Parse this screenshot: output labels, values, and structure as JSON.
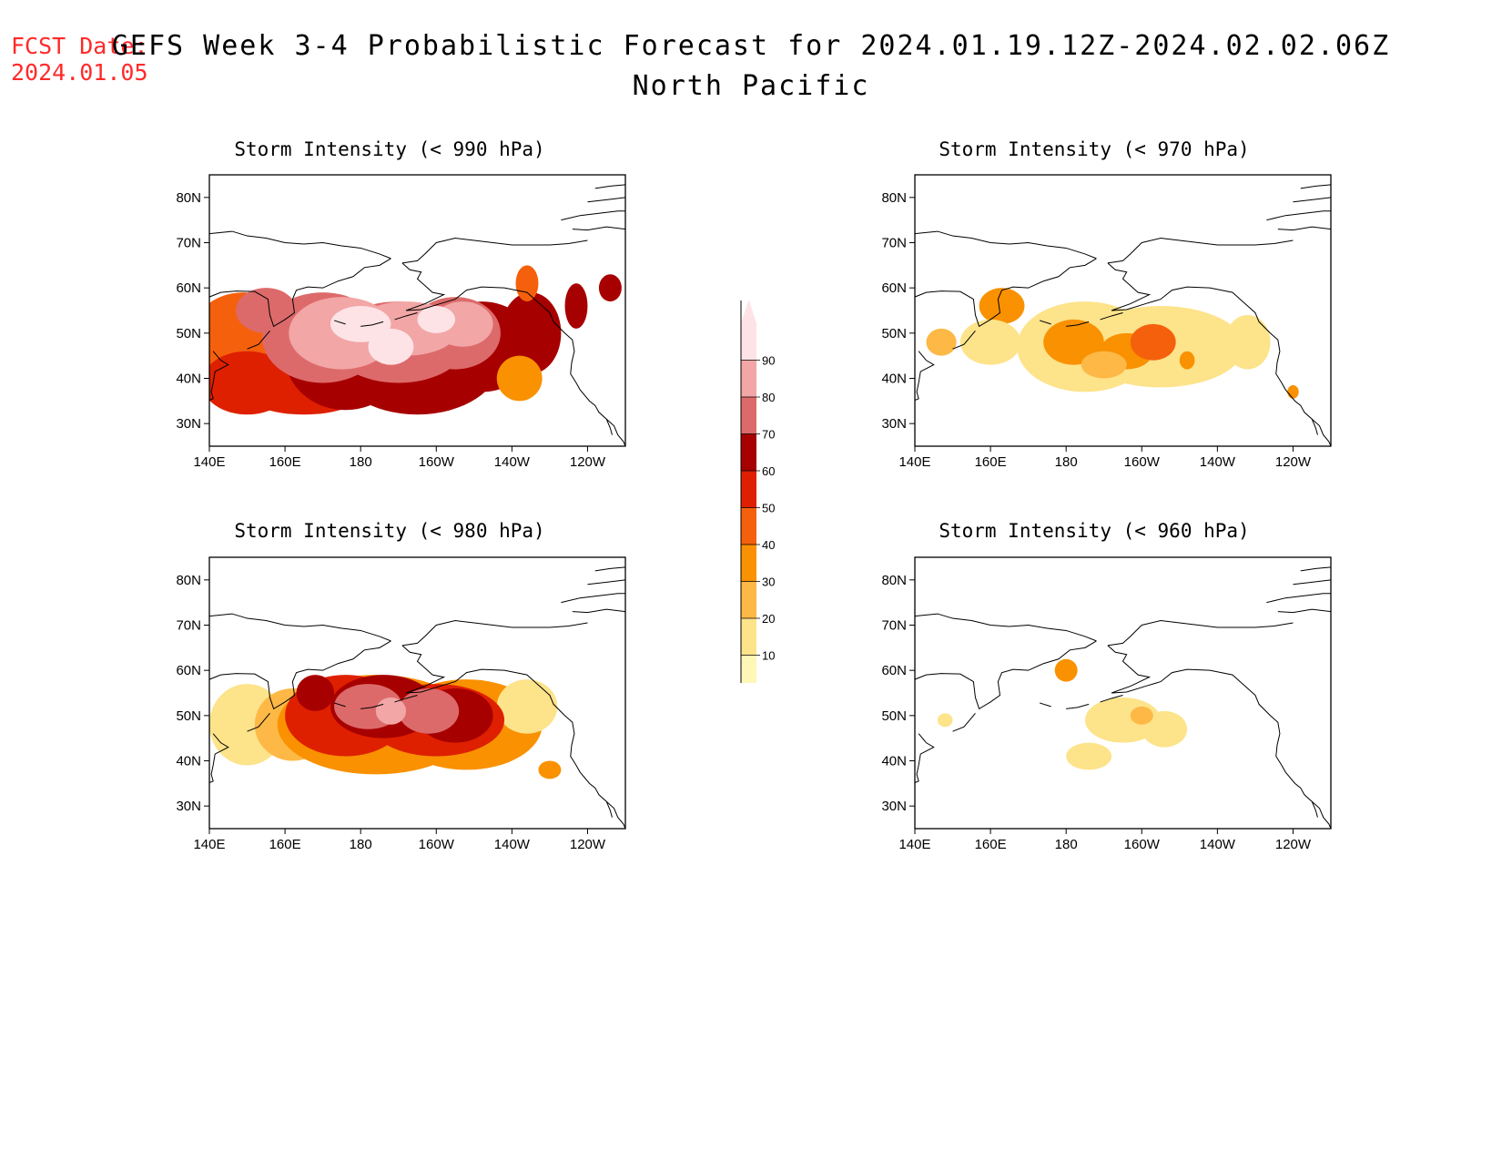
{
  "fcst_date": {
    "label": "FCST Date:",
    "value": "2024.01.05"
  },
  "title": {
    "line1": "GEFS Week 3-4 Probabilistic Forecast for 2024.01.19.12Z-2024.02.02.06Z",
    "line2": "North Pacific"
  },
  "axes": {
    "lat_labels": [
      "80N",
      "70N",
      "60N",
      "50N",
      "40N",
      "30N"
    ],
    "lon_labels": [
      "140E",
      "160E",
      "180",
      "160W",
      "140W",
      "120W"
    ]
  },
  "colorbar": {
    "levels": [
      "10",
      "20",
      "30",
      "40",
      "50",
      "60",
      "70",
      "80",
      "90"
    ],
    "colors": [
      "#fff7b8",
      "#fde38a",
      "#fdb846",
      "#f99100",
      "#f5600c",
      "#de2000",
      "#a70000",
      "#dd6a6a",
      "#f2a6a6",
      "#fde3e6"
    ]
  },
  "panels": [
    {
      "id": "p990",
      "title": "Storm Intensity (< 990 hPa)"
    },
    {
      "id": "p970",
      "title": "Storm Intensity (< 970 hPa)"
    },
    {
      "id": "p980",
      "title": "Storm Intensity (< 980 hPa)"
    },
    {
      "id": "p960",
      "title": "Storm Intensity (< 960 hPa)"
    }
  ]
}
